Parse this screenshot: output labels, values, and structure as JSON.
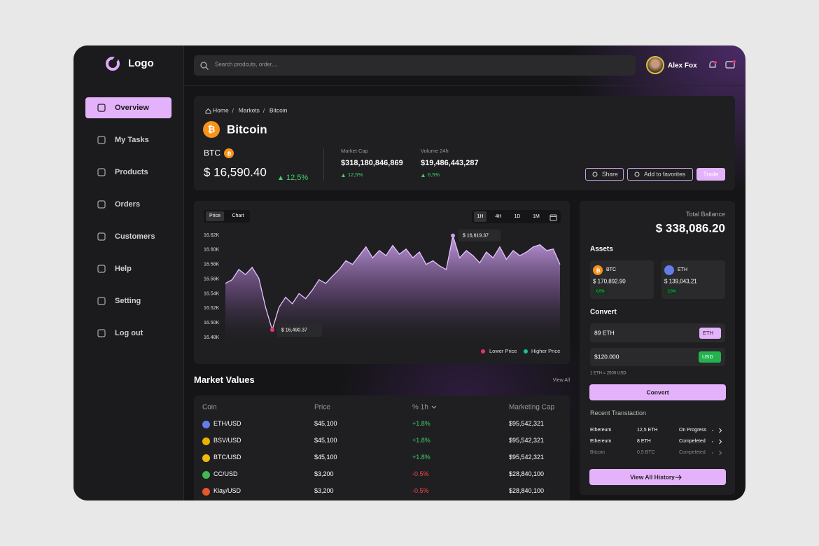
{
  "logo": "Logo",
  "nav": [
    "Overview",
    "My Tasks",
    "Products",
    "Orders",
    "Customers",
    "Help",
    "Setting",
    "Log out"
  ],
  "search_placeholder": "Search prodcuts, order,...",
  "user": "Alex Fox",
  "breadcrumb": [
    "Home",
    "Markets",
    "Bitcoin"
  ],
  "coin": {
    "name": "Bitcoin",
    "symbol": "BTC",
    "price": "$ 16,590.40",
    "change": "12,5%"
  },
  "stats": [
    {
      "label": "Market Cap",
      "value": "$318,180,846,869",
      "change": "12,5%"
    },
    {
      "label": "Volume 24h",
      "value": "$19,486,443,287",
      "change": "6,5%"
    }
  ],
  "actions": [
    "Share",
    "Add to favorites",
    "Trade"
  ],
  "chart_data": {
    "type": "area",
    "tabs": [
      "Price",
      "Chart"
    ],
    "ranges": [
      "1H",
      "4H",
      "1D",
      "1M"
    ],
    "ylim": [
      16480,
      16620
    ],
    "yticks": [
      {
        "value": 16620,
        "label": "16.62K"
      },
      {
        "value": 16600,
        "label": "16.60K"
      },
      {
        "value": 16580,
        "label": "16.58K"
      },
      {
        "value": 16560,
        "label": "16.56K"
      },
      {
        "value": 16540,
        "label": "16.54K"
      },
      {
        "value": 16520,
        "label": "16.52K"
      },
      {
        "value": 16500,
        "label": "16.50K"
      },
      {
        "value": 16480,
        "label": "16.48K"
      }
    ],
    "values": [
      16554,
      16559,
      16573,
      16566,
      16576,
      16561,
      16521,
      16490.37,
      16521,
      16535,
      16526,
      16540,
      16533,
      16545,
      16559,
      16554,
      16564,
      16573,
      16585,
      16580,
      16592,
      16604,
      16589,
      16599,
      16592,
      16606,
      16594,
      16601,
      16589,
      16597,
      16580,
      16585,
      16578,
      16573,
      16619.37,
      16589,
      16599,
      16592,
      16582,
      16597,
      16589,
      16604,
      16587,
      16599,
      16592,
      16597,
      16604,
      16607,
      16599,
      16601,
      16580
    ],
    "annotations": {
      "high": "$ 16,619.37",
      "low": "$ 16,490.37"
    },
    "legend": [
      "Lower Price",
      "Higher Price"
    ]
  },
  "market": {
    "title": "Market Values",
    "link": "View All",
    "columns": [
      "Coin",
      "Price",
      "% 1h",
      "Marketing Cap"
    ],
    "rows": [
      [
        "ETH/USD",
        "$45,100",
        "+1.8%",
        "$95,542,321"
      ],
      [
        "BSV/USD",
        "$45,100",
        "+1.8%",
        "$95,542,321"
      ],
      [
        "BTC/USD",
        "$45,100",
        "+1.8%",
        "$95,542,321"
      ],
      [
        "CC/USD",
        "$3,200",
        "-0.5%",
        "$28,840,100"
      ],
      [
        "Klay/USD",
        "$3,200",
        "-0.5%",
        "$28,840,100"
      ]
    ]
  },
  "wallet": {
    "total_label": "Total Ballance",
    "total": "$ 338,086.20",
    "assets_title": "Assets",
    "assets": [
      {
        "symbol": "BTC",
        "value": "$ 170,892.90",
        "change": "6,5%"
      },
      {
        "symbol": "ETH",
        "value": "$ 139,043,21",
        "change": "2,5%"
      }
    ],
    "convert_title": "Convert",
    "from": {
      "amount": "89 ETH",
      "currency": "ETH"
    },
    "to": {
      "amount": "$120.000",
      "currency": "USD"
    },
    "rate": "1 ETH = 2500 USD",
    "convert_button": "Convert",
    "recent_title": "Recent Transtaction",
    "transactions": [
      [
        "Ethereum",
        "12,5 ETH",
        "On Progress"
      ],
      [
        "Ethereum",
        "8 ETH",
        "Compeleted"
      ],
      [
        "Bitcoin",
        "0,5 BTC",
        "Compeleted"
      ]
    ],
    "history_button": "View All History"
  }
}
